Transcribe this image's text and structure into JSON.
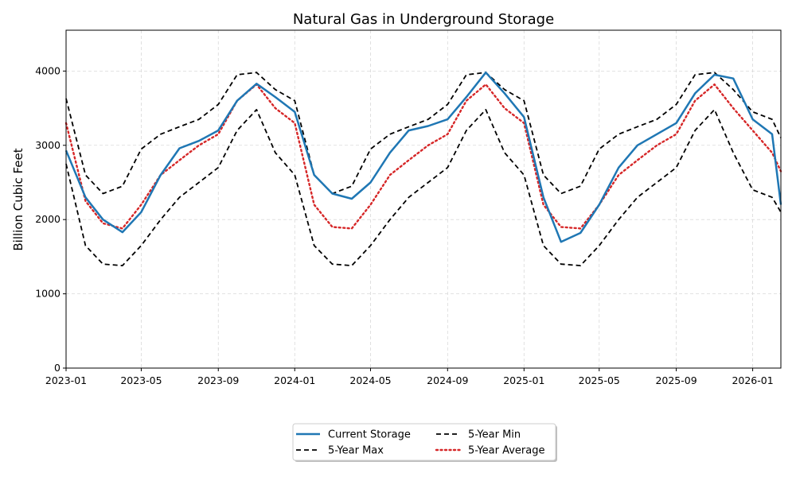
{
  "chart_data": {
    "type": "line",
    "title": "Natural Gas in Underground Storage",
    "xlabel": "",
    "ylabel": "Billion Cubic Feet",
    "xlim": [
      "2023-01-01",
      "2026-02-15"
    ],
    "ylim": [
      0,
      4550
    ],
    "x_ticks": [
      "2023-01",
      "2023-05",
      "2023-09",
      "2024-01",
      "2024-05",
      "2024-09",
      "2025-01",
      "2025-05",
      "2025-09",
      "2026-01"
    ],
    "y_ticks": [
      0,
      1000,
      2000,
      3000,
      4000
    ],
    "grid": true,
    "legend_position": "bottom-center",
    "x": [
      "2023-01-01",
      "2023-02-01",
      "2023-03-01",
      "2023-04-01",
      "2023-05-01",
      "2023-06-01",
      "2023-07-01",
      "2023-08-01",
      "2023-09-01",
      "2023-10-01",
      "2023-11-01",
      "2023-12-01",
      "2024-01-01",
      "2024-02-01",
      "2024-03-01",
      "2024-04-01",
      "2024-05-01",
      "2024-06-01",
      "2024-07-01",
      "2024-08-01",
      "2024-09-01",
      "2024-10-01",
      "2024-11-01",
      "2024-12-01",
      "2025-01-01",
      "2025-02-01",
      "2025-03-01",
      "2025-04-01",
      "2025-05-01",
      "2025-06-01",
      "2025-07-01",
      "2025-08-01",
      "2025-09-01",
      "2025-10-01",
      "2025-11-01",
      "2025-12-01",
      "2026-01-01",
      "2026-02-01",
      "2026-02-15"
    ],
    "series": [
      {
        "name": "Current Storage",
        "color": "#1f77b4",
        "style": "solid",
        "values": [
          2930,
          2300,
          2000,
          1830,
          2100,
          2600,
          2960,
          3060,
          3200,
          3600,
          3830,
          3650,
          3450,
          2600,
          2350,
          2280,
          2500,
          2900,
          3200,
          3260,
          3350,
          3650,
          3980,
          3700,
          3380,
          2300,
          1700,
          1820,
          2200,
          2700,
          3000,
          3150,
          3300,
          3700,
          3950,
          3900,
          3350,
          3150,
          2200
        ]
      },
      {
        "name": "5-Year Max",
        "color": "#000000",
        "style": "dashed",
        "values": [
          3630,
          2600,
          2350,
          2450,
          2950,
          3150,
          3250,
          3350,
          3550,
          3950,
          3980,
          3750,
          3600,
          2600,
          2350,
          2450,
          2950,
          3150,
          3250,
          3350,
          3550,
          3950,
          3980,
          3750,
          3600,
          2600,
          2350,
          2450,
          2950,
          3150,
          3250,
          3350,
          3550,
          3950,
          3980,
          3750,
          3450,
          3350,
          3100
        ]
      },
      {
        "name": "5-Year Min",
        "color": "#000000",
        "style": "dashed",
        "values": [
          2750,
          1650,
          1400,
          1380,
          1650,
          2000,
          2300,
          2500,
          2700,
          3200,
          3480,
          2900,
          2600,
          1650,
          1400,
          1380,
          1650,
          2000,
          2300,
          2500,
          2700,
          3200,
          3480,
          2900,
          2600,
          1650,
          1400,
          1380,
          1650,
          2000,
          2300,
          2500,
          2700,
          3200,
          3480,
          2900,
          2400,
          2300,
          2100
        ]
      },
      {
        "name": "5-Year Average",
        "color": "#d62728",
        "style": "dotted",
        "values": [
          3300,
          2250,
          1950,
          1880,
          2200,
          2600,
          2800,
          3000,
          3150,
          3600,
          3820,
          3500,
          3300,
          2200,
          1900,
          1880,
          2200,
          2600,
          2800,
          3000,
          3150,
          3600,
          3820,
          3500,
          3300,
          2200,
          1900,
          1880,
          2200,
          2600,
          2800,
          3000,
          3150,
          3600,
          3820,
          3500,
          3200,
          2900,
          2650
        ]
      }
    ],
    "legend": [
      {
        "name": "Current Storage",
        "color": "#1f77b4",
        "style": "solid"
      },
      {
        "name": "5-Year Max",
        "color": "#000000",
        "style": "dashed"
      },
      {
        "name": "5-Year Min",
        "color": "#000000",
        "style": "dashed"
      },
      {
        "name": "5-Year Average",
        "color": "#d62728",
        "style": "dotted"
      }
    ]
  }
}
